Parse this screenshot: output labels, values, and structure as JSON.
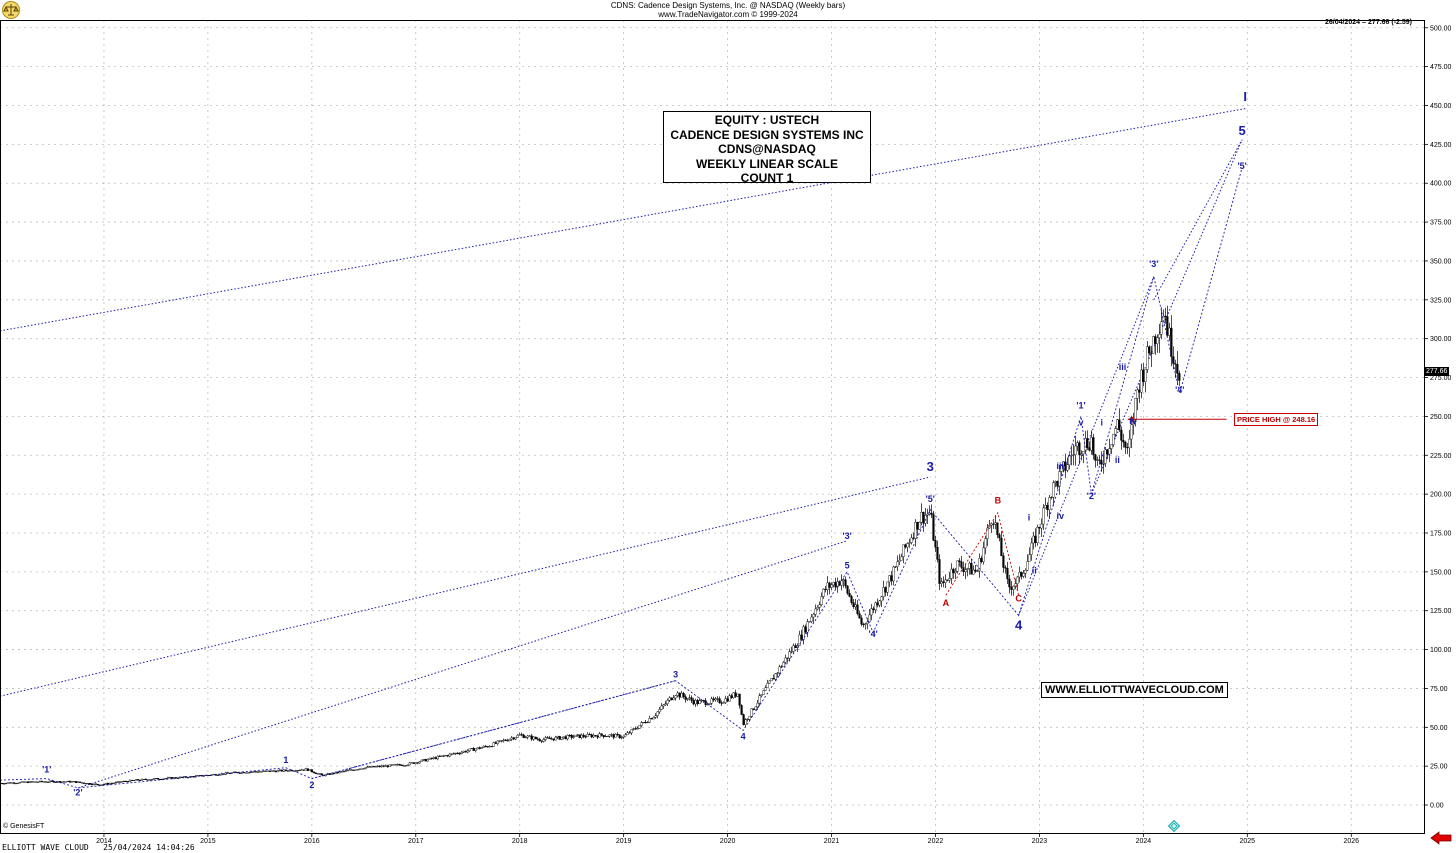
{
  "header": {
    "title": "CDNS:  Cadence Design Systems, Inc. @ NASDAQ  (Weekly bars)",
    "subtitle": "www.TradeNavigator.com © 1999-2024",
    "last_info": "26/04/2024 = 277.66 (-2.59)"
  },
  "info_box": {
    "lines": [
      "EQUITY : USTECH",
      "CADENCE DESIGN SYSTEMS INC",
      "CDNS@NASDAQ",
      "WEEKLY LINEAR SCALE",
      "COUNT 1"
    ]
  },
  "website": "WWW.ELLIOTTWAVECLOUD.COM",
  "price_high_label": "PRICE HIGH @ 248.16",
  "last_price_tag": "277.66",
  "copyright": "© GenesisFT",
  "footer": "ELLIOTT WAVE CLOUD   25/04/2024 14:04:26",
  "colors": {
    "wave_blue": "#1a1aa6",
    "corr_red": "#c00000",
    "candle": "#000000",
    "grid": "#bdbdbd"
  },
  "icons": {
    "logo": "gold-scale-icon",
    "nav": "red-arrow-icon",
    "marker": "cyan-diamond-icon"
  },
  "chart_data": {
    "type": "candlestick",
    "title": "CDNS:  Cadence Design Systems, Inc. @ NASDAQ  (Weekly bars)",
    "x_ticks": [
      "2014",
      "2015",
      "2016",
      "2017",
      "2018",
      "2019",
      "2020",
      "2021",
      "2022",
      "2023",
      "2024",
      "2025",
      "2026"
    ],
    "y_ticks": [
      "0.00",
      "25.00",
      "50.00",
      "75.00",
      "100.00",
      "125.00",
      "150.00",
      "175.00",
      "200.00",
      "225.00",
      "250.00",
      "275.00",
      "300.00",
      "325.00",
      "350.00",
      "375.00",
      "400.00",
      "425.00",
      "450.00",
      "475.00",
      "500.00"
    ],
    "xlim": [
      2013.0,
      2026.7
    ],
    "ylim": [
      -18,
      505
    ],
    "price_path": [
      [
        2013.0,
        14
      ],
      [
        2013.4,
        15
      ],
      [
        2013.7,
        15
      ],
      [
        2013.95,
        13
      ],
      [
        2014.3,
        16
      ],
      [
        2014.8,
        18
      ],
      [
        2015.3,
        21
      ],
      [
        2015.7,
        22
      ],
      [
        2015.95,
        23
      ],
      [
        2016.1,
        19
      ],
      [
        2016.5,
        24
      ],
      [
        2016.9,
        26
      ],
      [
        2017.3,
        32
      ],
      [
        2017.7,
        38
      ],
      [
        2018.0,
        45
      ],
      [
        2018.2,
        42
      ],
      [
        2018.5,
        44
      ],
      [
        2018.8,
        45
      ],
      [
        2019.0,
        44
      ],
      [
        2019.3,
        58
      ],
      [
        2019.5,
        72
      ],
      [
        2019.7,
        66
      ],
      [
        2019.95,
        67
      ],
      [
        2020.1,
        72
      ],
      [
        2020.15,
        52
      ],
      [
        2020.4,
        78
      ],
      [
        2020.7,
        108
      ],
      [
        2020.95,
        140
      ],
      [
        2021.1,
        145
      ],
      [
        2021.3,
        115
      ],
      [
        2021.6,
        150
      ],
      [
        2021.85,
        185
      ],
      [
        2021.95,
        188
      ],
      [
        2022.05,
        140
      ],
      [
        2022.2,
        155
      ],
      [
        2022.4,
        150
      ],
      [
        2022.55,
        188
      ],
      [
        2022.7,
        140
      ],
      [
        2022.8,
        145
      ],
      [
        2022.9,
        160
      ],
      [
        2023.1,
        200
      ],
      [
        2023.35,
        230
      ],
      [
        2023.5,
        235
      ],
      [
        2023.55,
        215
      ],
      [
        2023.75,
        245
      ],
      [
        2023.85,
        225
      ],
      [
        2023.95,
        270
      ],
      [
        2024.1,
        300
      ],
      [
        2024.2,
        320
      ],
      [
        2024.25,
        300
      ],
      [
        2024.35,
        278
      ]
    ],
    "wave_labels": [
      {
        "text": "'1'",
        "x": 2013.45,
        "y": 21,
        "color": "wave_blue"
      },
      {
        "text": "'2'",
        "x": 2013.75,
        "y": 6,
        "color": "wave_blue"
      },
      {
        "text": "1",
        "x": 2015.75,
        "y": 27,
        "color": "wave_blue"
      },
      {
        "text": "2",
        "x": 2016.0,
        "y": 11,
        "color": "wave_blue"
      },
      {
        "text": "3",
        "x": 2019.5,
        "y": 82,
        "color": "wave_blue"
      },
      {
        "text": "4",
        "x": 2020.15,
        "y": 42,
        "color": "wave_blue"
      },
      {
        "text": "'3'",
        "x": 2021.15,
        "y": 171,
        "color": "wave_blue"
      },
      {
        "text": "5",
        "x": 2021.15,
        "y": 152,
        "color": "wave_blue"
      },
      {
        "text": "'4'",
        "x": 2021.4,
        "y": 108,
        "color": "wave_blue"
      },
      {
        "text": "3",
        "x": 2021.95,
        "y": 215,
        "color": "wave_blue",
        "size": "lg"
      },
      {
        "text": "'5'",
        "x": 2021.95,
        "y": 195,
        "color": "wave_blue"
      },
      {
        "text": "A",
        "x": 2022.1,
        "y": 128,
        "color": "corr_red"
      },
      {
        "text": "B",
        "x": 2022.6,
        "y": 194,
        "color": "corr_red"
      },
      {
        "text": "C",
        "x": 2022.8,
        "y": 131,
        "color": "corr_red"
      },
      {
        "text": "4",
        "x": 2022.8,
        "y": 113,
        "color": "wave_blue",
        "size": "lg"
      },
      {
        "text": "i",
        "x": 2022.9,
        "y": 183,
        "color": "wave_blue"
      },
      {
        "text": "ii",
        "x": 2022.95,
        "y": 149,
        "color": "wave_blue"
      },
      {
        "text": "iii",
        "x": 2023.2,
        "y": 216,
        "color": "wave_blue"
      },
      {
        "text": "iv",
        "x": 2023.2,
        "y": 184,
        "color": "wave_blue"
      },
      {
        "text": "'1'",
        "x": 2023.4,
        "y": 255,
        "color": "wave_blue"
      },
      {
        "text": "v",
        "x": 2023.4,
        "y": 244,
        "color": "wave_blue"
      },
      {
        "text": "'2'",
        "x": 2023.5,
        "y": 197,
        "color": "wave_blue"
      },
      {
        "text": "i",
        "x": 2023.6,
        "y": 244,
        "color": "wave_blue"
      },
      {
        "text": "ii",
        "x": 2023.75,
        "y": 220,
        "color": "wave_blue"
      },
      {
        "text": "iii",
        "x": 2023.8,
        "y": 280,
        "color": "wave_blue"
      },
      {
        "text": "iv",
        "x": 2023.9,
        "y": 245,
        "color": "wave_blue"
      },
      {
        "text": "'3'",
        "x": 2024.1,
        "y": 346,
        "color": "wave_blue"
      },
      {
        "text": "'4'",
        "x": 2024.35,
        "y": 265,
        "color": "wave_blue"
      },
      {
        "text": "'5'",
        "x": 2024.95,
        "y": 409,
        "color": "wave_blue"
      },
      {
        "text": "5",
        "x": 2024.95,
        "y": 431,
        "color": "wave_blue",
        "size": "lg"
      },
      {
        "text": "I",
        "x": 2024.98,
        "y": 453,
        "color": "wave_blue",
        "size": "lg"
      }
    ],
    "wave_lines": [
      [
        [
          2013.0,
          16
        ],
        [
          2013.45,
          17
        ],
        [
          2013.75,
          11
        ],
        [
          2015.75,
          24
        ],
        [
          2016.0,
          17
        ],
        [
          2019.5,
          80
        ],
        [
          2020.15,
          48
        ],
        [
          2021.15,
          150
        ],
        [
          2021.4,
          111
        ],
        [
          2021.95,
          190
        ],
        [
          2022.8,
          122
        ],
        [
          2023.4,
          250
        ],
        [
          2023.5,
          200
        ],
        [
          2024.1,
          340
        ],
        [
          2024.35,
          265
        ],
        [
          2024.95,
          410
        ]
      ],
      [
        [
          2022.1,
          135
        ],
        [
          2022.6,
          188
        ],
        [
          2022.8,
          135
        ]
      ]
    ],
    "channels": [
      [
        [
          2013.0,
          305
        ],
        [
          2024.98,
          448
        ]
      ],
      [
        [
          2013.0,
          70
        ],
        [
          2021.95,
          211
        ]
      ],
      [
        [
          2013.75,
          11
        ],
        [
          2021.15,
          170
        ]
      ],
      [
        [
          2016.0,
          17
        ],
        [
          2019.5,
          80
        ]
      ],
      [
        [
          2022.8,
          122
        ],
        [
          2024.1,
          340
        ]
      ],
      [
        [
          2023.5,
          200
        ],
        [
          2024.95,
          428
        ]
      ],
      [
        [
          2024.1,
          325
        ],
        [
          2024.95,
          428
        ]
      ]
    ],
    "reference_line": {
      "y": 248.16,
      "x_from": 2023.85,
      "x_to": 2024.8,
      "label": "PRICE HIGH @ 248.16"
    }
  }
}
